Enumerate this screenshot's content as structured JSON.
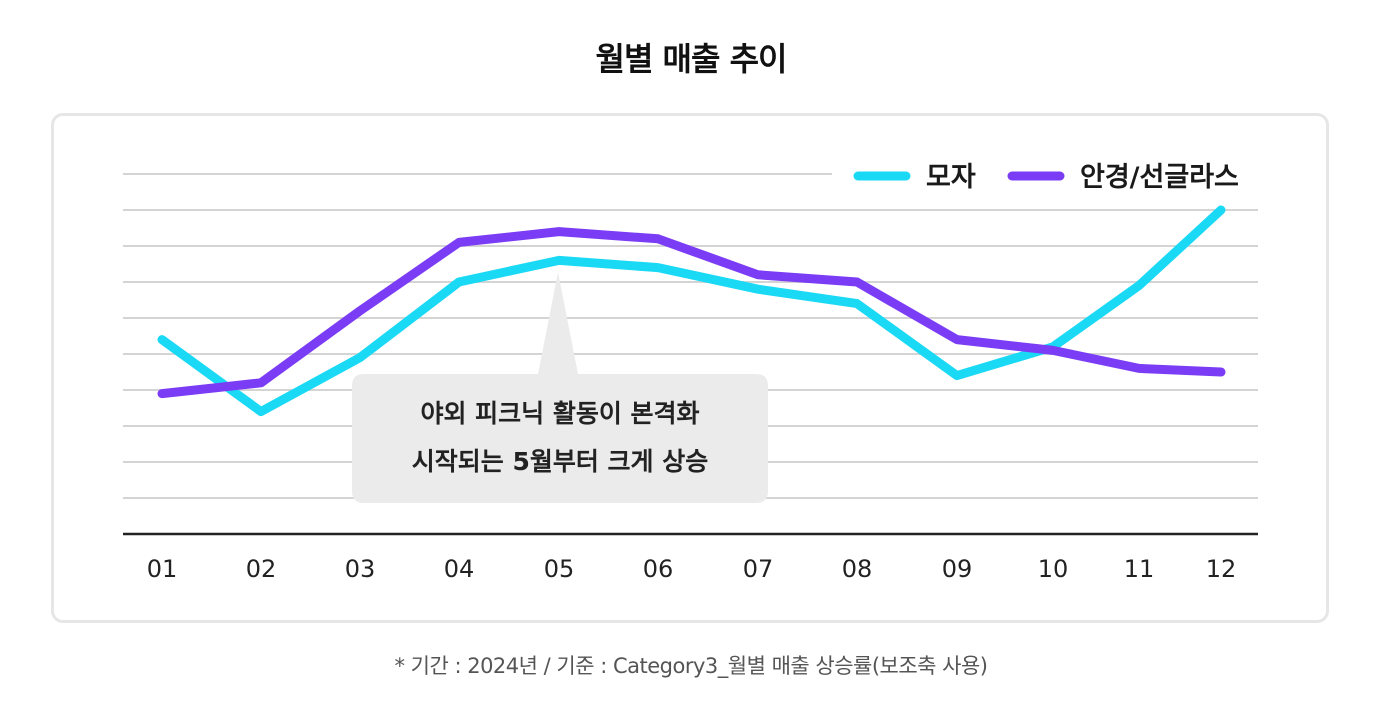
{
  "page": {
    "title": "월별 매출 추이",
    "footnote": "* 기간 : 2024년 / 기준 : Category3_월별 매출 상승률(보조축 사용)"
  },
  "chart_data": {
    "type": "line",
    "title": "월별 매출 추이",
    "categories": [
      "01",
      "02",
      "03",
      "04",
      "05",
      "06",
      "07",
      "08",
      "09",
      "10",
      "11",
      "12"
    ],
    "series": [
      {
        "name": "모자",
        "color": "#1ad9f5",
        "values": [
          5.4,
          3.4,
          4.9,
          7.0,
          7.6,
          7.4,
          6.8,
          6.4,
          4.4,
          5.2,
          6.9,
          9.0
        ]
      },
      {
        "name": "안경/선글라스",
        "color": "#7b3cf5",
        "values": [
          3.9,
          4.2,
          6.2,
          8.1,
          8.4,
          8.2,
          7.2,
          7.0,
          5.4,
          5.1,
          4.6,
          4.5
        ]
      }
    ],
    "ylim": [
      0,
      10
    ],
    "grid": true,
    "legend": "top-right",
    "annotation": {
      "line1": "야외 피크닉 활동이 본격화",
      "line2": "시작되는 5월부터 크게 상승",
      "category": "05",
      "bg": "#ebebeb"
    }
  }
}
